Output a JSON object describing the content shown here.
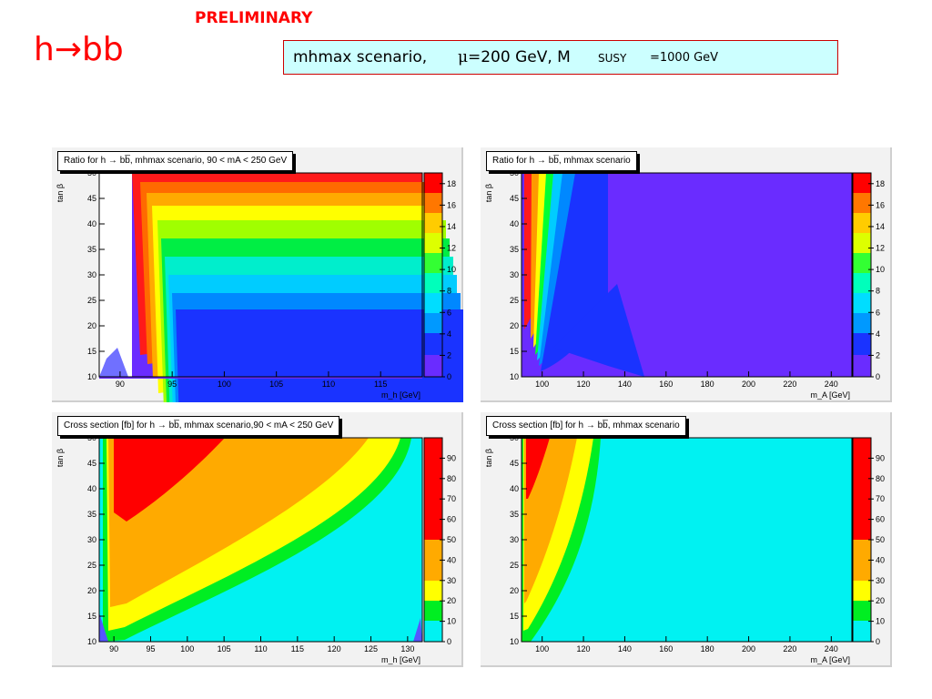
{
  "header": {
    "preliminary": "PRELIMINARY",
    "title": "h→bb",
    "scenario": {
      "part1": "mhmax scenario, ",
      "mu": "μ",
      "part2": "=200 GeV,  M",
      "sub": "SUSY",
      "part3": "=1000 GeV"
    }
  },
  "panels": [
    {
      "title": "Ratio for h → bb̅, mhmax scenario, 90 < mA < 250 GeV",
      "xaxis": "m_h [GeV]"
    },
    {
      "title": "Ratio for h → bb̅, mhmax scenario",
      "xaxis": "m_A [GeV]"
    },
    {
      "title": "Cross section [fb] for h → bb̅, mhmax scenario,90 < mA < 250 GeV",
      "xaxis": "m_h [GeV]"
    },
    {
      "title": "Cross section [fb] for h → bb̅, mhmax scenario",
      "xaxis": "m_A [GeV]"
    }
  ],
  "chart_data": [
    {
      "type": "heatmap",
      "title": "Ratio for h → bb̅, mhmax scenario, 90 < mA < 250 GeV",
      "xlabel": "m_h [GeV]",
      "ylabel": "tan β",
      "xticks": [
        "90",
        "95",
        "100",
        "105",
        "110",
        "115"
      ],
      "yticks": [
        "10",
        "15",
        "20",
        "25",
        "30",
        "35",
        "40",
        "45",
        "50"
      ],
      "xlim": [
        88,
        119
      ],
      "ylim": [
        10,
        50
      ],
      "colorbar_ticks": [
        "0",
        "2",
        "4",
        "6",
        "8",
        "10",
        "12",
        "14",
        "16",
        "18"
      ],
      "zlim": [
        0,
        19
      ]
    },
    {
      "type": "heatmap",
      "title": "Ratio for h → bb̅, mhmax scenario",
      "xlabel": "m_A [GeV]",
      "ylabel": "tan β",
      "xticks": [
        "100",
        "120",
        "140",
        "160",
        "180",
        "200",
        "220",
        "240"
      ],
      "yticks": [
        "10",
        "15",
        "20",
        "25",
        "30",
        "35",
        "40",
        "45",
        "50"
      ],
      "xlim": [
        90,
        250
      ],
      "ylim": [
        10,
        50
      ],
      "colorbar_ticks": [
        "0",
        "2",
        "4",
        "6",
        "8",
        "10",
        "12",
        "14",
        "16",
        "18"
      ],
      "zlim": [
        0,
        19
      ]
    },
    {
      "type": "heatmap",
      "title": "Cross section [fb] for h → bb̅, mhmax scenario,90 < mA < 250 GeV",
      "xlabel": "m_h [GeV]",
      "ylabel": "tan β",
      "xticks": [
        "90",
        "95",
        "100",
        "105",
        "110",
        "115",
        "120",
        "125",
        "130"
      ],
      "yticks": [
        "10",
        "15",
        "20",
        "25",
        "30",
        "35",
        "40",
        "45",
        "50"
      ],
      "xlim": [
        88,
        132
      ],
      "ylim": [
        10,
        50
      ],
      "colorbar_ticks": [
        "0",
        "10",
        "20",
        "30",
        "40",
        "50",
        "60",
        "70",
        "80",
        "90"
      ],
      "zlim": [
        0,
        100
      ]
    },
    {
      "type": "heatmap",
      "title": "Cross section [fb] for h → bb̅, mhmax scenario",
      "xlabel": "m_A [GeV]",
      "ylabel": "tan β",
      "xticks": [
        "100",
        "120",
        "140",
        "160",
        "180",
        "200",
        "220",
        "240"
      ],
      "yticks": [
        "10",
        "15",
        "20",
        "25",
        "30",
        "35",
        "40",
        "45",
        "50"
      ],
      "xlim": [
        90,
        250
      ],
      "ylim": [
        10,
        50
      ],
      "colorbar_ticks": [
        "0",
        "10",
        "20",
        "30",
        "40",
        "50",
        "60",
        "70",
        "80",
        "90"
      ],
      "zlim": [
        0,
        100
      ]
    }
  ]
}
